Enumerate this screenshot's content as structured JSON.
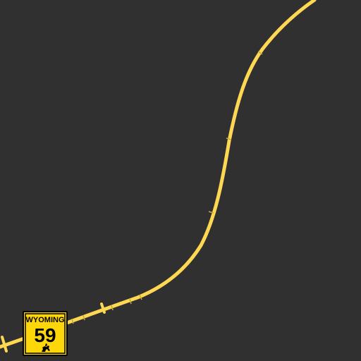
{
  "map": {
    "background_color": "#303030",
    "road": {
      "color": "#fed753",
      "casing_color": "#d9b43a"
    },
    "route_shield": {
      "state": "WYOMING",
      "route_number": "59",
      "fill_color": "#fdd70a",
      "border_color": "#000000",
      "icon": "bucking-horse-icon"
    }
  }
}
